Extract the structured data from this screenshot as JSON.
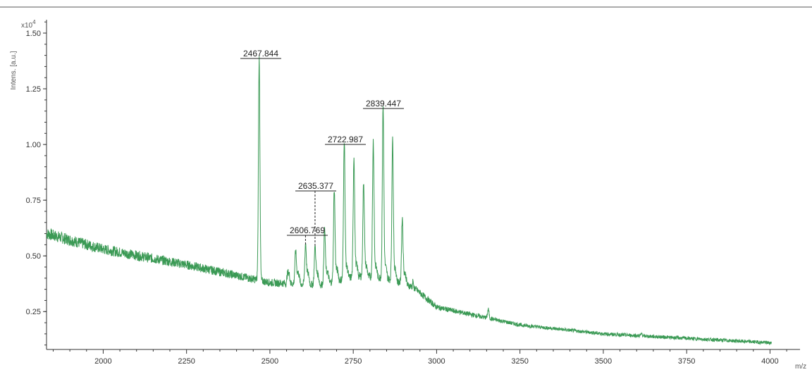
{
  "chart_data": {
    "type": "line",
    "ylabel": "Intens. [a.u.]",
    "xlabel": "m/z",
    "y_multiplier": "x10",
    "y_multiplier_exp": "4",
    "xlim": [
      1830,
      4090
    ],
    "ylim": [
      0.08,
      1.56
    ],
    "xticks": [
      2000,
      2250,
      2500,
      2750,
      3000,
      3250,
      3500,
      3750,
      4000
    ],
    "yticks": [
      0.25,
      0.5,
      0.75,
      1.0,
      1.25,
      1.5
    ],
    "ytick_labels": [
      "0.25",
      "0.50",
      "0.75",
      "1.00",
      "1.25",
      "1.50"
    ],
    "grid": false,
    "line_color": "#3b9a55",
    "series": [
      {
        "baseline": [
          [
            1830,
            0.6
          ],
          [
            2000,
            0.53
          ],
          [
            2250,
            0.46
          ],
          [
            2500,
            0.38
          ],
          [
            2650,
            0.37
          ],
          [
            2760,
            0.41
          ],
          [
            2850,
            0.4
          ],
          [
            2930,
            0.36
          ],
          [
            3000,
            0.27
          ],
          [
            3250,
            0.19
          ],
          [
            3500,
            0.15
          ],
          [
            3750,
            0.13
          ],
          [
            4000,
            0.11
          ]
        ],
        "peaks": [
          {
            "x": 2467.844,
            "y": 1.39,
            "label": "2467.844"
          },
          {
            "x": 2577,
            "y": 0.52
          },
          {
            "x": 2606.769,
            "y": 0.55,
            "label": "2606.769"
          },
          {
            "x": 2635.377,
            "y": 0.54,
            "label": "2635.377"
          },
          {
            "x": 2664,
            "y": 0.62
          },
          {
            "x": 2693,
            "y": 0.8
          },
          {
            "x": 2722.987,
            "y": 1.02,
            "label": "2722.987"
          },
          {
            "x": 2752,
            "y": 0.94
          },
          {
            "x": 2781,
            "y": 0.83
          },
          {
            "x": 2810,
            "y": 1.02
          },
          {
            "x": 2839.447,
            "y": 1.18,
            "label": "2839.447"
          },
          {
            "x": 2868,
            "y": 1.02
          },
          {
            "x": 2897,
            "y": 0.67
          },
          {
            "x": 3155,
            "y": 0.26
          },
          {
            "x": 3615,
            "y": 0.15
          }
        ]
      }
    ]
  }
}
